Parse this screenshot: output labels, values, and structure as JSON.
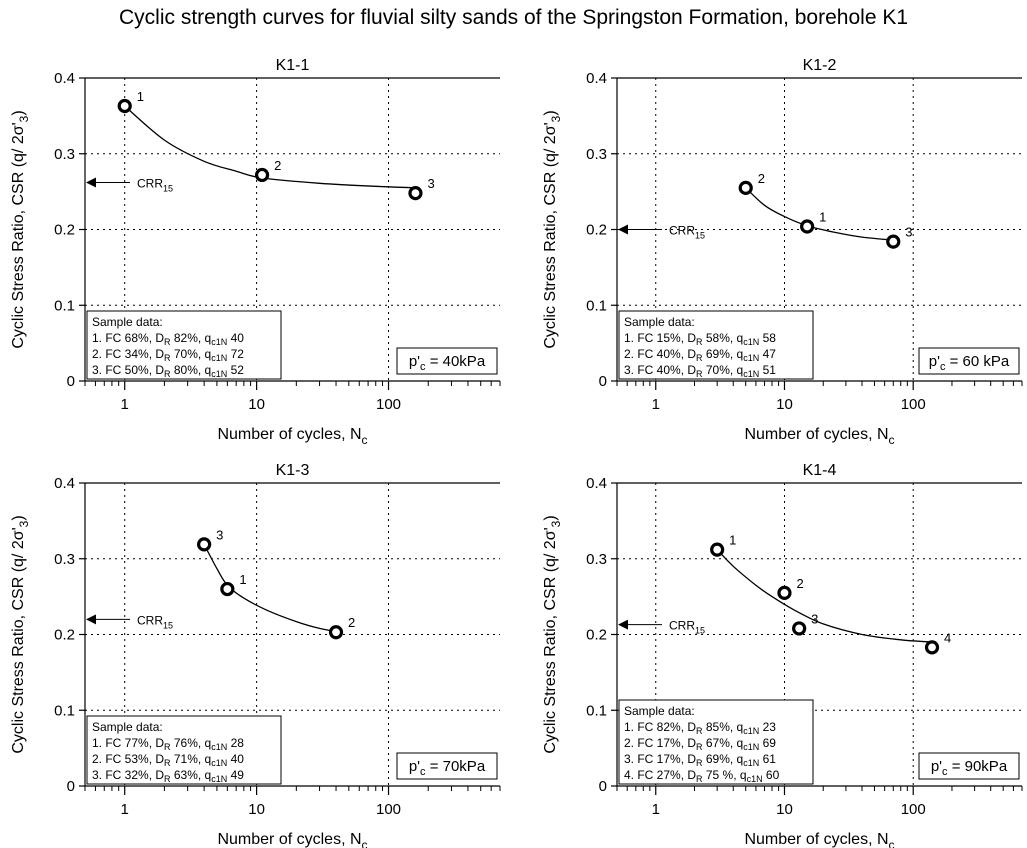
{
  "title": "Cyclic strength curves for fluvial silty sands of the Springston Formation, borehole K1",
  "axis_labels": {
    "xlabel_main": "Number of cycles, N",
    "xlabel_sub": "c",
    "ylabel": "Cyclic Stress Ratio, CSR (q/ 2σ'",
    "ylabel_sub": "3",
    "ylabel_close": ")"
  },
  "crr_label": {
    "main": "CRR",
    "sub": "15"
  },
  "sample_box_title": "Sample data:",
  "chart_data": [
    {
      "type": "scatter",
      "title": "K1-1",
      "xscale": "log",
      "xlim": [
        0.5,
        700
      ],
      "ylim": [
        0,
        0.4
      ],
      "xticks": [
        1,
        10,
        100
      ],
      "yticks": [
        0,
        0.1,
        0.2,
        0.3,
        0.4
      ],
      "grid": "dotted",
      "points": [
        {
          "label": "1",
          "N": 1,
          "CSR": 0.363
        },
        {
          "label": "2",
          "N": 11,
          "CSR": 0.272
        },
        {
          "label": "3",
          "N": 160,
          "CSR": 0.248
        }
      ],
      "fit_curve": [
        [
          1,
          0.363
        ],
        [
          2,
          0.318
        ],
        [
          4,
          0.29
        ],
        [
          7,
          0.277
        ],
        [
          11,
          0.268
        ],
        [
          30,
          0.261
        ],
        [
          80,
          0.257
        ],
        [
          160,
          0.255
        ]
      ],
      "crr15": 0.262,
      "confining_pressure": {
        "prefix": "p'",
        "sub": "c",
        "value": " = 40kPa"
      },
      "samples": [
        {
          "id": "1.",
          "fc": "FC 68%,",
          "dr": "82%,",
          "q": "40"
        },
        {
          "id": "2.",
          "fc": "FC 34%,",
          "dr": "70%,",
          "q": "72"
        },
        {
          "id": "3.",
          "fc": "FC 50%,",
          "dr": "80%,",
          "q": "52"
        }
      ]
    },
    {
      "type": "scatter",
      "title": "K1-2",
      "xscale": "log",
      "xlim": [
        0.5,
        700
      ],
      "ylim": [
        0,
        0.4
      ],
      "xticks": [
        1,
        10,
        100
      ],
      "yticks": [
        0,
        0.1,
        0.2,
        0.3,
        0.4
      ],
      "grid": "dotted",
      "points": [
        {
          "label": "2",
          "N": 5,
          "CSR": 0.255
        },
        {
          "label": "1",
          "N": 15,
          "CSR": 0.204
        },
        {
          "label": "3",
          "N": 70,
          "CSR": 0.184
        }
      ],
      "fit_curve": [
        [
          5,
          0.255
        ],
        [
          7,
          0.232
        ],
        [
          10,
          0.217
        ],
        [
          15,
          0.205
        ],
        [
          25,
          0.196
        ],
        [
          40,
          0.19
        ],
        [
          70,
          0.186
        ]
      ],
      "crr15": 0.2,
      "confining_pressure": {
        "prefix": "p'",
        "sub": "c",
        "value": " = 60 kPa"
      },
      "samples": [
        {
          "id": "1.",
          "fc": "FC 15%,",
          "dr": "58%,",
          "q": "58"
        },
        {
          "id": "2.",
          "fc": "FC 40%,",
          "dr": "69%,",
          "q": "47"
        },
        {
          "id": "3.",
          "fc": "FC 40%,",
          "dr": "70%,",
          "q": "51"
        }
      ]
    },
    {
      "type": "scatter",
      "title": "K1-3",
      "xscale": "log",
      "xlim": [
        0.5,
        700
      ],
      "ylim": [
        0,
        0.4
      ],
      "xticks": [
        1,
        10,
        100
      ],
      "yticks": [
        0,
        0.1,
        0.2,
        0.3,
        0.4
      ],
      "grid": "dotted",
      "points": [
        {
          "label": "3",
          "N": 4,
          "CSR": 0.319
        },
        {
          "label": "1",
          "N": 6,
          "CSR": 0.26
        },
        {
          "label": "2",
          "N": 40,
          "CSR": 0.203
        }
      ],
      "fit_curve": [
        [
          4,
          0.319
        ],
        [
          5,
          0.287
        ],
        [
          6,
          0.265
        ],
        [
          8,
          0.248
        ],
        [
          12,
          0.232
        ],
        [
          20,
          0.217
        ],
        [
          30,
          0.208
        ],
        [
          40,
          0.204
        ]
      ],
      "crr15": 0.22,
      "confining_pressure": {
        "prefix": "p'",
        "sub": "c",
        "value": " = 70kPa"
      },
      "samples": [
        {
          "id": "1.",
          "fc": "FC 77%,",
          "dr": "76%,",
          "q": "28"
        },
        {
          "id": "2.",
          "fc": "FC 53%,",
          "dr": "71%,",
          "q": "40"
        },
        {
          "id": "3.",
          "fc": "FC 32%,",
          "dr": "63%,",
          "q": "49"
        }
      ]
    },
    {
      "type": "scatter",
      "title": "K1-4",
      "xscale": "log",
      "xlim": [
        0.5,
        700
      ],
      "ylim": [
        0,
        0.4
      ],
      "xticks": [
        1,
        10,
        100
      ],
      "yticks": [
        0,
        0.1,
        0.2,
        0.3,
        0.4
      ],
      "grid": "dotted",
      "points": [
        {
          "label": "1",
          "N": 3,
          "CSR": 0.312
        },
        {
          "label": "2",
          "N": 10,
          "CSR": 0.255
        },
        {
          "label": "3",
          "N": 13,
          "CSR": 0.208
        },
        {
          "label": "4",
          "N": 140,
          "CSR": 0.183
        }
      ],
      "fit_curve": [
        [
          3,
          0.312
        ],
        [
          4,
          0.29
        ],
        [
          6,
          0.265
        ],
        [
          8,
          0.25
        ],
        [
          12,
          0.232
        ],
        [
          20,
          0.214
        ],
        [
          40,
          0.2
        ],
        [
          80,
          0.193
        ],
        [
          140,
          0.19
        ]
      ],
      "crr15": 0.213,
      "confining_pressure": {
        "prefix": "p'",
        "sub": "c",
        "value": " = 90kPa"
      },
      "samples": [
        {
          "id": "1.",
          "fc": "FC 82%,",
          "dr": "85%,",
          "q": "23"
        },
        {
          "id": "2.",
          "fc": "FC 17%,",
          "dr": "67%,",
          "q": "69"
        },
        {
          "id": "3.",
          "fc": "FC 17%,",
          "dr": "69%,",
          "q": "61"
        },
        {
          "id": "4.",
          "fc": "FC 27%,",
          "dr": "75 %,",
          "q": "60"
        }
      ]
    }
  ]
}
